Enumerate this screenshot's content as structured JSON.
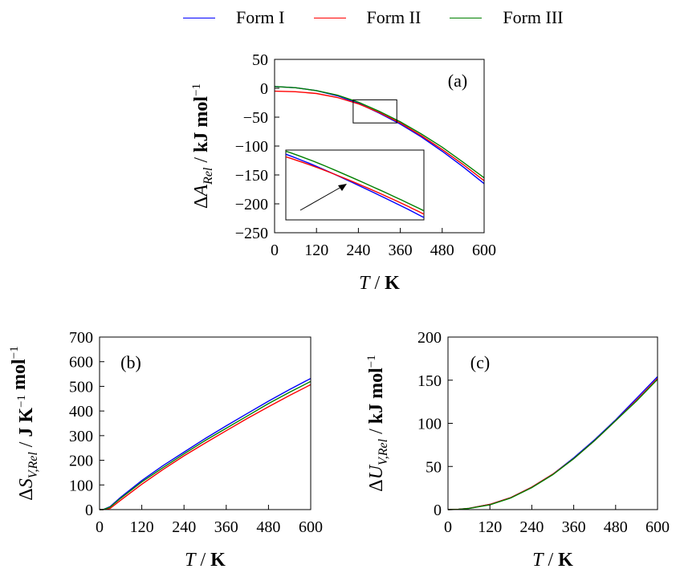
{
  "legend": [
    {
      "name": "Form I",
      "color": "#0000ff"
    },
    {
      "name": "Form II",
      "color": "#ff0000"
    },
    {
      "name": "Form III",
      "color": "#008000"
    }
  ],
  "chart_data": [
    {
      "type": "line",
      "panel_label": "(a)",
      "xlabel": "T / K",
      "ylabel": "ΔA_Rel / kJ mol⁻¹",
      "xlim": [
        0,
        600
      ],
      "ylim": [
        -250,
        50
      ],
      "xticks": [
        0,
        120,
        240,
        360,
        480,
        600
      ],
      "yticks": [
        50,
        0,
        -50,
        -100,
        -150,
        -200,
        -250
      ],
      "x": [
        0,
        60,
        120,
        180,
        240,
        300,
        360,
        420,
        480,
        540,
        600
      ],
      "series": [
        {
          "name": "Form I",
          "color": "#0000ff",
          "values": [
            3,
            1,
            -4,
            -13,
            -26,
            -43,
            -62,
            -84,
            -109,
            -136,
            -165
          ]
        },
        {
          "name": "Form II",
          "color": "#ff0000",
          "values": [
            -5,
            -6,
            -9,
            -16,
            -27,
            -42,
            -60,
            -82,
            -106,
            -132,
            -160
          ]
        },
        {
          "name": "Form III",
          "color": "#008000",
          "values": [
            3,
            1,
            -4,
            -12,
            -24,
            -40,
            -58,
            -79,
            -102,
            -128,
            -155
          ]
        }
      ],
      "zoom_box": {
        "x": [
          225,
          350
        ],
        "y": [
          -60,
          -20
        ]
      },
      "grid": false
    },
    {
      "type": "line",
      "panel_label": "(b)",
      "xlabel": "T / K",
      "ylabel": "ΔS_V,Rel / J K⁻¹ mol⁻¹",
      "xlim": [
        0,
        600
      ],
      "ylim": [
        0,
        700
      ],
      "xticks": [
        0,
        120,
        240,
        360,
        480,
        600
      ],
      "yticks": [
        0,
        100,
        200,
        300,
        400,
        500,
        600,
        700
      ],
      "x": [
        0,
        10,
        30,
        60,
        120,
        180,
        240,
        300,
        360,
        420,
        480,
        540,
        600
      ],
      "series": [
        {
          "name": "Form I",
          "color": "#0000ff",
          "values": [
            0,
            0,
            12,
            50,
            118,
            178,
            233,
            288,
            340,
            390,
            440,
            487,
            532
          ]
        },
        {
          "name": "Form II",
          "color": "#ff0000",
          "values": [
            0,
            0,
            5,
            38,
            103,
            162,
            218,
            270,
            320,
            370,
            417,
            463,
            507
          ]
        },
        {
          "name": "Form III",
          "color": "#008000",
          "values": [
            0,
            0,
            10,
            46,
            112,
            170,
            226,
            280,
            330,
            380,
            430,
            476,
            520
          ]
        }
      ],
      "grid": false
    },
    {
      "type": "line",
      "panel_label": "(c)",
      "xlabel": "T / K",
      "ylabel": "ΔU_V,Rel / kJ mol⁻¹",
      "xlim": [
        0,
        600
      ],
      "ylim": [
        0,
        200
      ],
      "xticks": [
        0,
        120,
        240,
        360,
        480,
        600
      ],
      "yticks": [
        0,
        50,
        100,
        150,
        200
      ],
      "x": [
        0,
        30,
        60,
        120,
        180,
        240,
        300,
        360,
        420,
        480,
        540,
        600
      ],
      "series": [
        {
          "name": "Form I",
          "color": "#0000ff",
          "values": [
            0,
            0.4,
            1.5,
            6,
            14,
            26,
            41,
            60,
            81,
            104,
            129,
            154
          ]
        },
        {
          "name": "Form II",
          "color": "#ff0000",
          "values": [
            0,
            0.4,
            1.5,
            6,
            14,
            26,
            41,
            59,
            80,
            103,
            127,
            152
          ]
        },
        {
          "name": "Form III",
          "color": "#008000",
          "values": [
            0,
            0.3,
            1.3,
            5.5,
            13.5,
            25.5,
            40.5,
            59,
            80,
            103,
            126,
            151
          ]
        }
      ],
      "grid": false
    }
  ]
}
